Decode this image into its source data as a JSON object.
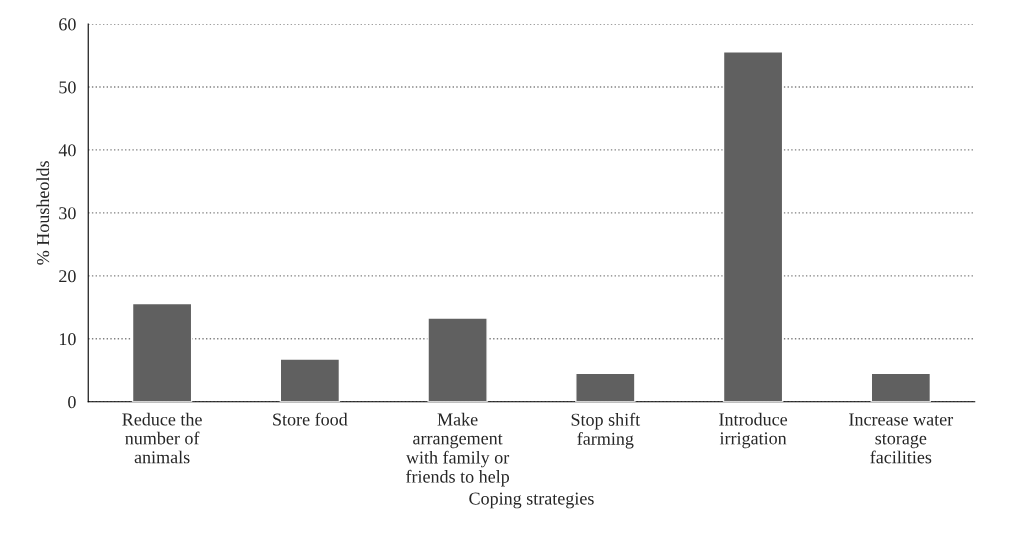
{
  "chart_data": {
    "type": "bar",
    "xlabel": "Coping strategies",
    "ylabel": "% Housheolds",
    "categories": [
      "Reduce the\nnumber of\nanimals",
      "Store food",
      "Make\narrangement\nwith family or\nfriends to help",
      "Stop shift\nfarming",
      "Introduce\nirrigation",
      "Increase water\nstorage\nfacilities"
    ],
    "values": [
      15.6,
      6.8,
      13.3,
      4.5,
      55.6,
      4.5
    ],
    "color": "#606060",
    "ylim": [
      0,
      60
    ],
    "yticks": [
      0,
      10,
      20,
      30,
      40,
      50,
      60
    ],
    "grid": "y"
  }
}
